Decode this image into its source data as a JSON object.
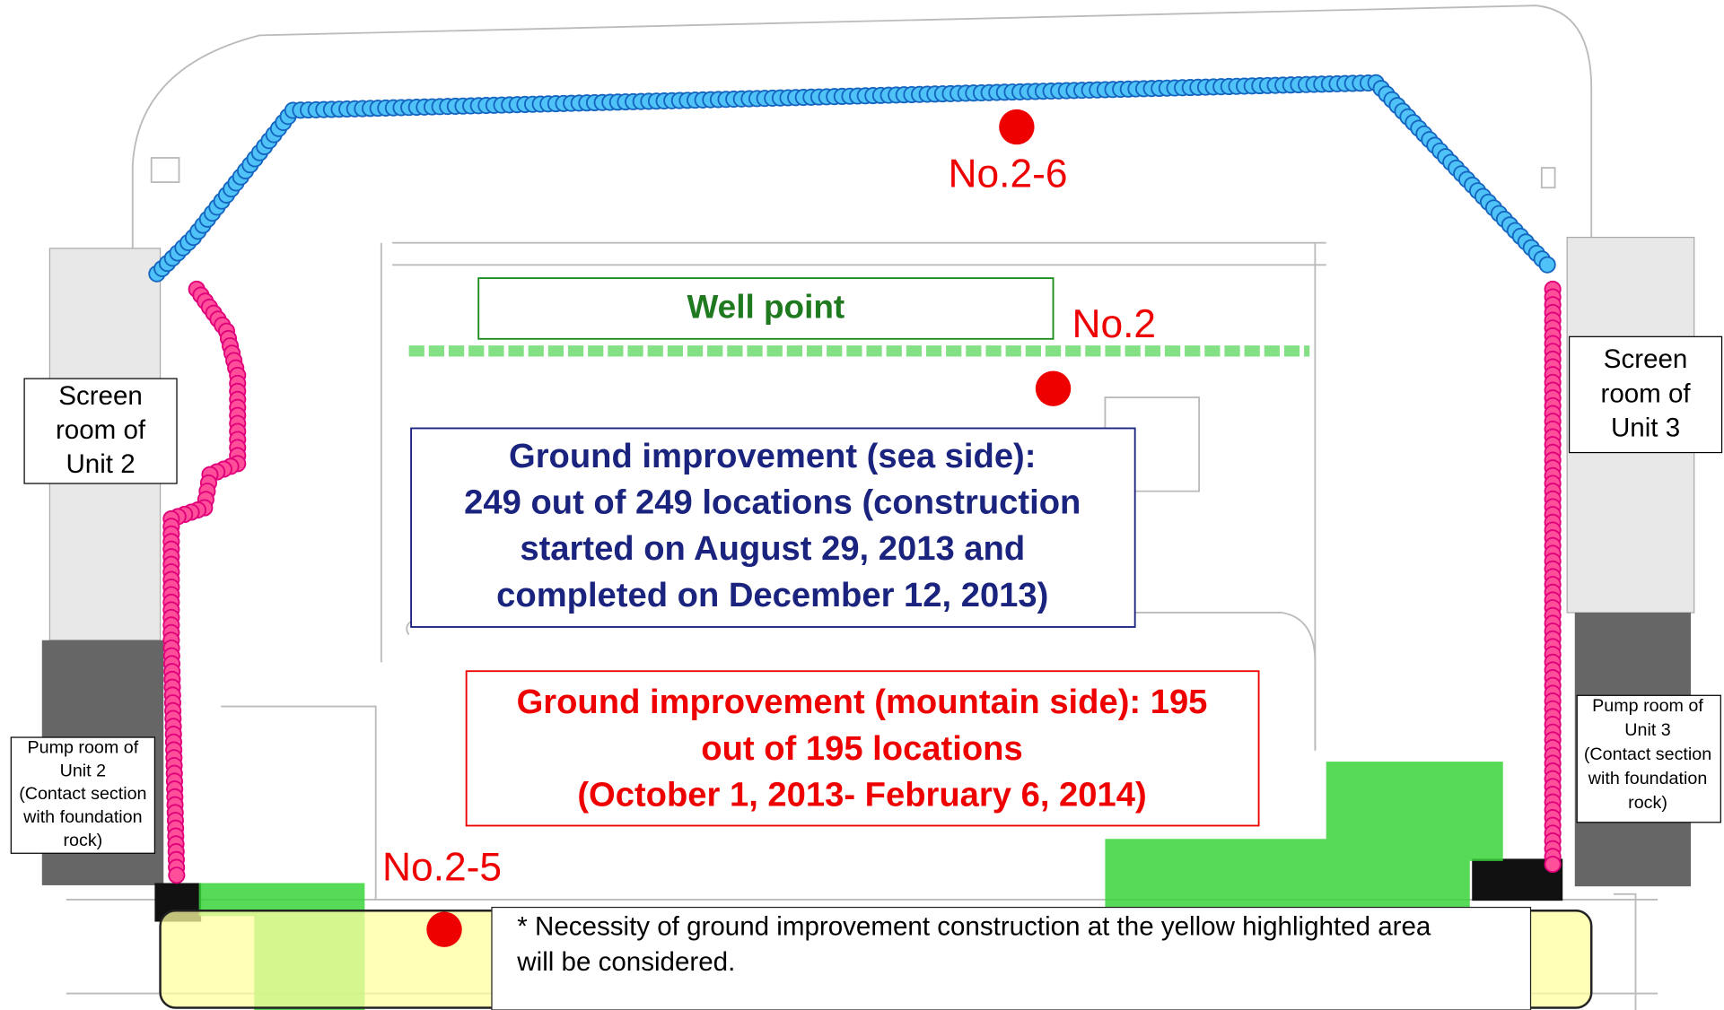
{
  "labels": {
    "well_point": "Well point",
    "no_2_6": "No.2-6",
    "no_2": "No.2",
    "no_2_5": "No.2-5"
  },
  "screen_room_unit2": [
    "Screen",
    "room of",
    "Unit 2"
  ],
  "screen_room_unit3": [
    "Screen",
    "room of",
    "Unit 3"
  ],
  "pump_room_unit2": [
    "Pump room of",
    "Unit 2",
    "(Contact section",
    "with foundation",
    "rock)"
  ],
  "pump_room_unit3": [
    "Pump room of",
    "Unit 3",
    "(Contact section",
    "with foundation",
    "rock)"
  ],
  "sea_side": [
    "Ground improvement (sea side):",
    "249 out of 249 locations (construction",
    "started on August 29, 2013 and",
    "completed on December 12, 2013)"
  ],
  "mountain_side": [
    "Ground improvement (mountain side): 195",
    "out of 195 locations",
    "(October 1, 2013- February 6, 2014)"
  ],
  "note": [
    "* Necessity of ground improvement construction at  the yellow highlighted area",
    "will be considered."
  ]
}
